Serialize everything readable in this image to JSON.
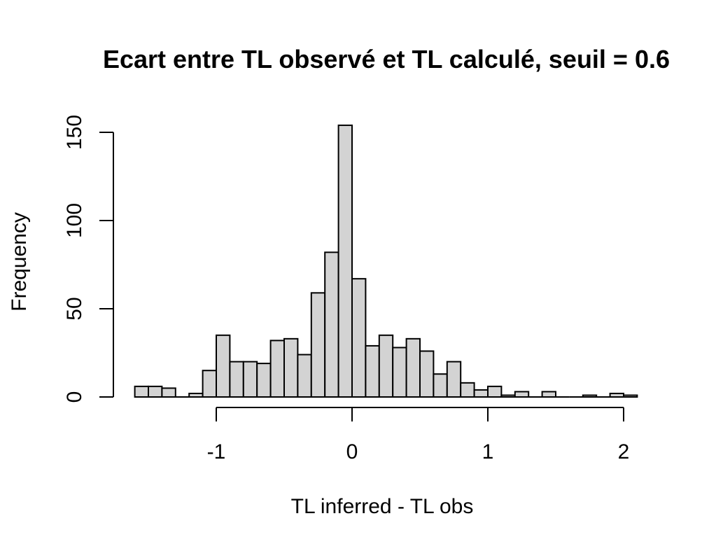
{
  "chart_data": {
    "type": "bar",
    "title": "Ecart entre TL observé et TL calculé, seuil = 0.6",
    "xlabel": "TL inferred - TL obs",
    "ylabel": "Frequency",
    "bin_width": 0.1,
    "bin_starts": [
      -1.6,
      -1.5,
      -1.4,
      -1.3,
      -1.2,
      -1.1,
      -1.0,
      -0.9,
      -0.8,
      -0.7,
      -0.6,
      -0.5,
      -0.4,
      -0.3,
      -0.2,
      -0.1,
      0.0,
      0.1,
      0.2,
      0.3,
      0.4,
      0.5,
      0.6,
      0.7,
      0.8,
      0.9,
      1.0,
      1.1,
      1.2,
      1.3,
      1.4,
      1.5,
      1.6,
      1.7,
      1.8,
      1.9,
      2.0
    ],
    "values": [
      6,
      6,
      5,
      0,
      2,
      15,
      35,
      20,
      20,
      19,
      32,
      33,
      24,
      59,
      82,
      154,
      67,
      29,
      35,
      28,
      33,
      26,
      13,
      20,
      8,
      4,
      6,
      1,
      3,
      0,
      3,
      0,
      0,
      1,
      0,
      2,
      1
    ],
    "xlim": [
      -1.6,
      2.1
    ],
    "ylim": [
      0,
      154
    ],
    "xticks": [
      -1,
      0,
      1,
      2
    ],
    "yticks": [
      0,
      50,
      100,
      150
    ],
    "bar_color": "#d3d3d3",
    "grid": false
  }
}
